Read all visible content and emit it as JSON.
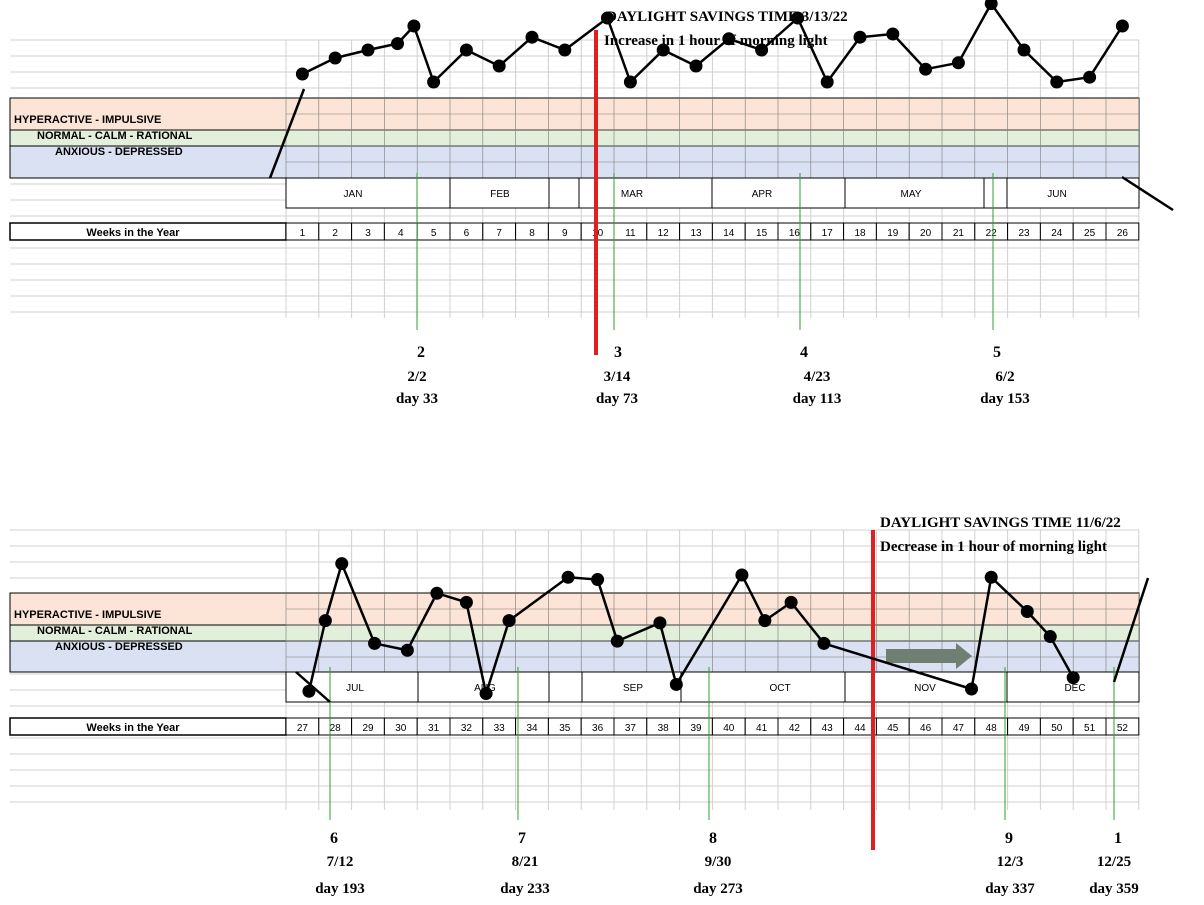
{
  "colors": {
    "hyperactive_band": "#fce4d6",
    "normal_band": "#e2efda",
    "anxious_band": "#dae1f2",
    "grid": "#d0d0d0",
    "dst_line": "#e02020",
    "marker_line": "#2ca02c",
    "arrow": "#6f7f72",
    "series": "#000000"
  },
  "chart_data": [
    {
      "type": "line",
      "band_labels": [
        "HYPERACTIVE - IMPULSIVE",
        "NORMAL - CALM - RATIONAL",
        "ANXIOUS - DEPRESSED"
      ],
      "row_header": "Weeks in the Year",
      "weeks": [
        1,
        2,
        3,
        4,
        5,
        6,
        7,
        8,
        9,
        10,
        11,
        12,
        13,
        14,
        15,
        16,
        17,
        18,
        19,
        20,
        21,
        22,
        23,
        24,
        25,
        26
      ],
      "months": [
        "JAN",
        "FEB",
        "MAR",
        "APR",
        "MAY",
        "JUN"
      ],
      "mood_level": {
        "week": [
          1.0,
          2.0,
          3.0,
          3.9,
          4.4,
          5.0,
          6.0,
          7.0,
          8.0,
          9.0,
          10.3,
          11.0,
          12.0,
          13.0,
          14.0,
          15.0,
          16.1,
          17.0,
          18.0,
          19.0,
          20.0,
          21.0,
          22.0,
          23.0,
          24.0,
          25.0,
          26.0
        ],
        "level": [
          5.5,
          4.5,
          4.0,
          3.6,
          2.5,
          6.0,
          4.0,
          5.0,
          3.2,
          4.0,
          2.0,
          6.0,
          4.0,
          5.0,
          3.3,
          4.0,
          2.0,
          6.0,
          3.2,
          3.0,
          5.2,
          4.8,
          1.1,
          4.0,
          6.0,
          5.7,
          2.5
        ]
      },
      "dst": {
        "title": "DAYLIGHT SAVINGS TIME 3/13/22",
        "note": "Increase in 1 hour of morning light"
      },
      "markers": [
        {
          "num": "2",
          "date": "2/2",
          "day": "day 33",
          "week": 4.4
        },
        {
          "num": "3",
          "date": "3/14",
          "day": "day 73",
          "week": 10.3
        },
        {
          "num": "4",
          "date": "4/23",
          "day": "day 113",
          "week": 16.1
        },
        {
          "num": "5",
          "date": "6/2",
          "day": "day 153",
          "week": 22.0
        }
      ]
    },
    {
      "type": "line",
      "band_labels": [
        "HYPERACTIVE - IMPULSIVE",
        "NORMAL - CALM - RATIONAL",
        "ANXIOUS - DEPRESSED"
      ],
      "row_header": "Weeks in the Year",
      "weeks": [
        27,
        28,
        29,
        30,
        31,
        32,
        33,
        34,
        35,
        36,
        37,
        38,
        39,
        40,
        41,
        42,
        43,
        44,
        45,
        46,
        47,
        48,
        49,
        50,
        51,
        52
      ],
      "months": [
        "JUL",
        "AUG",
        "SEP",
        "OCT",
        "NOV",
        "DEC"
      ],
      "mood_level": {
        "week": [
          28.2,
          28.7,
          29.2,
          30.2,
          31.2,
          32.1,
          33.0,
          33.6,
          34.3,
          36.1,
          37.0,
          37.6,
          38.9,
          39.4,
          41.4,
          42.1,
          42.9,
          43.9,
          48.4,
          49.0,
          50.1,
          50.8,
          51.5
        ],
        "level": [
          0.9,
          4.0,
          6.5,
          3.0,
          2.7,
          5.2,
          4.8,
          0.8,
          4.0,
          5.9,
          5.8,
          3.1,
          3.9,
          1.2,
          6.0,
          4.0,
          4.8,
          3.0,
          1.0,
          5.9,
          4.4,
          3.3,
          1.5
        ]
      },
      "dst": {
        "title": "DAYLIGHT SAVINGS TIME 11/6/22",
        "note": "Decrease in 1 hour of morning light"
      },
      "markers": [
        {
          "num": "6",
          "date": "7/12",
          "day": "day 193",
          "week": 28.2
        },
        {
          "num": "7",
          "date": "8/21",
          "day": "day 233",
          "week": 33.6
        },
        {
          "num": "8",
          "date": "9/30",
          "day": "day 273",
          "week": 39.4
        },
        {
          "num": "9",
          "date": "12/3",
          "day": "day 337",
          "week": 48.4
        },
        {
          "num": "1",
          "date": "12/25",
          "day": "day 359",
          "week": 51.5
        }
      ]
    }
  ]
}
